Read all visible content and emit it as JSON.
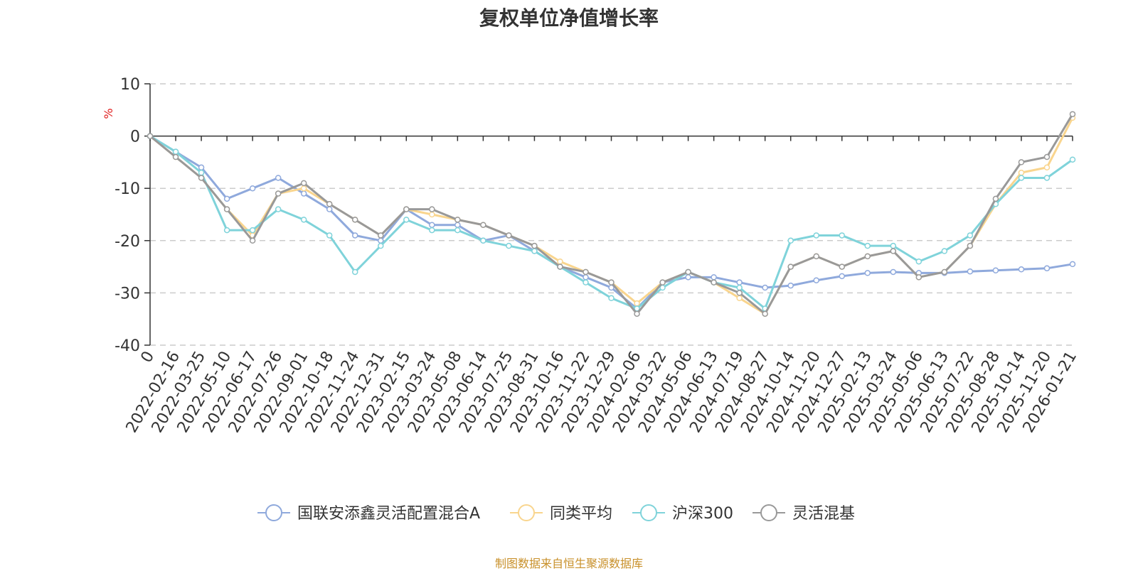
{
  "chart_data": {
    "type": "line",
    "title": "复权单位净值增长率",
    "ylabel": "%",
    "xlabel": "",
    "ylim": [
      -40,
      10
    ],
    "yticks": [
      "10",
      "0",
      "-10",
      "-20",
      "-30",
      "-40"
    ],
    "grid": true,
    "legend_position": "bottom",
    "categories": [
      "0",
      "2022-02-16",
      "2022-03-25",
      "2022-05-10",
      "2022-06-17",
      "2022-07-26",
      "2022-09-01",
      "2022-10-18",
      "2022-11-24",
      "2022-12-31",
      "2023-02-15",
      "2023-03-24",
      "2023-05-08",
      "2023-06-14",
      "2023-07-25",
      "2023-08-31",
      "2023-10-16",
      "2023-11-22",
      "2023-12-29",
      "2024-02-06",
      "2024-03-22",
      "2024-05-06",
      "2024-06-13",
      "2024-07-19",
      "2024-08-27",
      "2024-10-14",
      "2024-11-20",
      "2024-12-27",
      "2025-02-13",
      "2025-03-24",
      "2025-05-06",
      "2025-06-13",
      "2025-07-22",
      "2025-08-28",
      "2025-10-14",
      "2025-11-20",
      "2026-01-21"
    ],
    "series": [
      {
        "name": "国联安添鑫灵活配置混合A",
        "color": "#8fa9dc",
        "values": [
          0,
          -3,
          -6,
          -12,
          -10,
          -8,
          -11,
          -14,
          -19,
          -20,
          -14,
          -17,
          -17,
          -20,
          -19,
          -22,
          -25,
          -27,
          -29,
          -33,
          -28,
          -27,
          -27,
          -28,
          -29,
          -28.6,
          -27.6,
          -26.8,
          -26.2,
          -26,
          -26.2,
          -26.2,
          -25.9,
          -25.7,
          -25.5,
          -25.3,
          -24.5
        ]
      },
      {
        "name": "同类平均",
        "color": "#f9d58e",
        "values": [
          0,
          -4,
          -8,
          -14,
          -19,
          -11,
          -10,
          -13,
          -16,
          -19,
          -14,
          -15,
          -16,
          -17,
          -19,
          -21,
          -24,
          -26,
          -28,
          -32,
          -28,
          -26,
          -28,
          -31,
          -34,
          -25,
          -23,
          -25,
          -23,
          -22,
          -27,
          -26,
          -21,
          -13,
          -7,
          -6,
          3.5
        ]
      },
      {
        "name": "沪深300",
        "color": "#7fd3da",
        "values": [
          0,
          -3,
          -7,
          -18,
          -18,
          -14,
          -16,
          -19,
          -26,
          -21,
          -16,
          -18,
          -18,
          -20,
          -21,
          -22,
          -25,
          -28,
          -31,
          -33,
          -29,
          -26,
          -28,
          -29,
          -33,
          -20,
          -19,
          -19,
          -21,
          -21,
          -24,
          -22,
          -19,
          -13,
          -8,
          -8,
          -4.5
        ]
      },
      {
        "name": "灵活混基",
        "color": "#999999",
        "values": [
          0,
          -4,
          -8,
          -14,
          -20,
          -11,
          -9,
          -13,
          -16,
          -19,
          -14,
          -14,
          -16,
          -17,
          -19,
          -21,
          -25,
          -26,
          -28,
          -34,
          -28,
          -26,
          -28,
          -30,
          -34,
          -25,
          -23,
          -25,
          -23,
          -22,
          -27,
          -26,
          -21,
          -12,
          -5,
          -4,
          4.2
        ]
      }
    ]
  },
  "source": "制图数据来自恒生聚源数据库"
}
